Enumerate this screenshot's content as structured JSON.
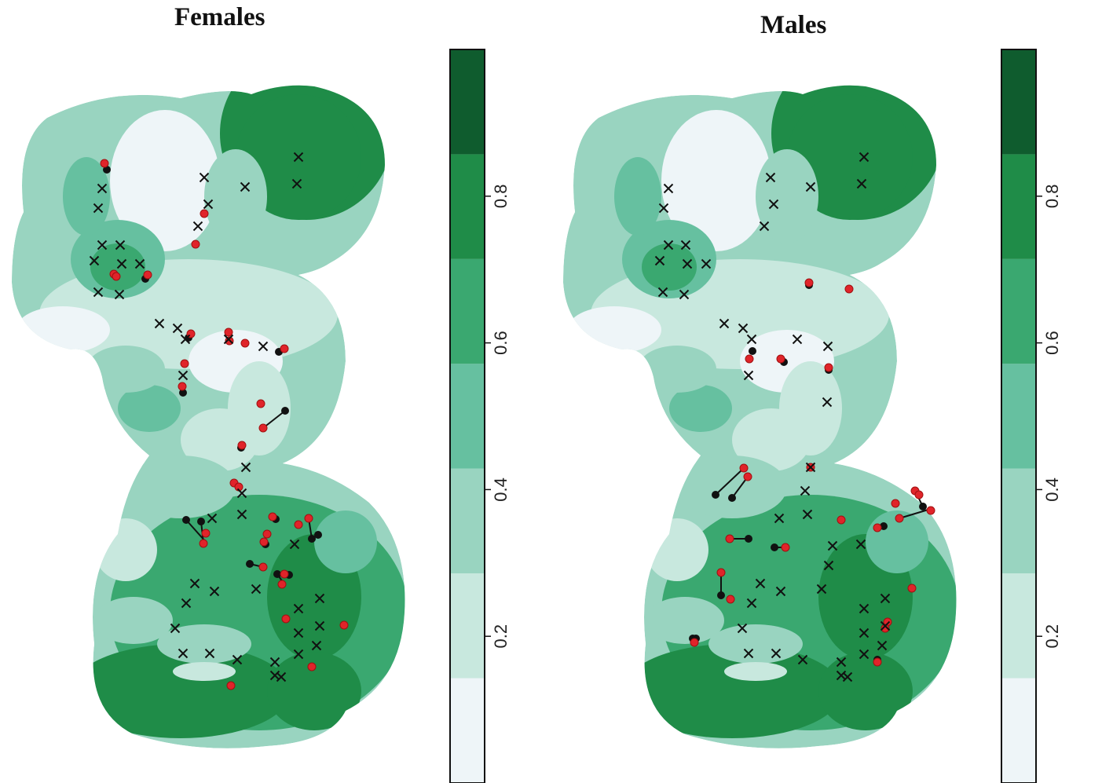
{
  "panels": [
    {
      "title": "Females"
    },
    {
      "title": "Males"
    }
  ],
  "legend": {
    "tick_labels": [
      "0.2",
      "0.4",
      "0.6",
      "0.8"
    ],
    "tick_values": [
      0.2,
      0.4,
      0.6,
      0.8
    ],
    "range": [
      0,
      1
    ],
    "bands": 7,
    "band_colors": [
      "#eef5f8",
      "#c8e8de",
      "#99d4c0",
      "#66c0a0",
      "#3aa870",
      "#1f8c48",
      "#0f5c2e"
    ]
  },
  "colors": {
    "detector_marker": "#111111",
    "red_point": "#e0242a",
    "black_point": "#111111"
  },
  "icons": [
    "x-marker-icon",
    "red-dot-icon",
    "black-dot-icon"
  ]
}
